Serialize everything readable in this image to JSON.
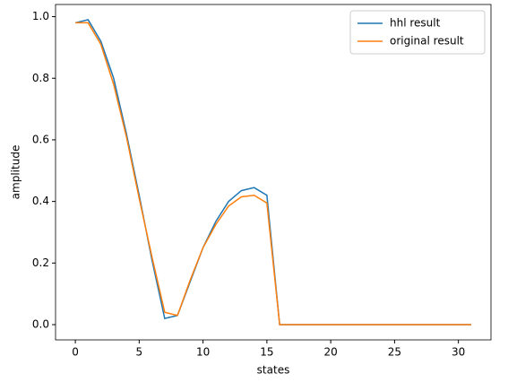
{
  "chart_data": {
    "type": "line",
    "x_label": "states",
    "y_label": "amplitude",
    "x": [
      0,
      1,
      2,
      3,
      4,
      5,
      6,
      7,
      8,
      9,
      10,
      11,
      12,
      13,
      14,
      15,
      16,
      17,
      18,
      19,
      20,
      21,
      22,
      23,
      24,
      25,
      26,
      27,
      28,
      29,
      30,
      31
    ],
    "series": [
      {
        "name": "hhl result",
        "color": "#1f77b4",
        "values": [
          0.98,
          0.99,
          0.92,
          0.8,
          0.62,
          0.42,
          0.21,
          0.02,
          0.03,
          0.14,
          0.25,
          0.335,
          0.4,
          0.435,
          0.445,
          0.42,
          0,
          0,
          0,
          0,
          0,
          0,
          0,
          0,
          0,
          0,
          0,
          0,
          0,
          0,
          0,
          0
        ]
      },
      {
        "name": "original result",
        "color": "#ff7f0e",
        "values": [
          0.98,
          0.98,
          0.91,
          0.78,
          0.61,
          0.41,
          0.22,
          0.04,
          0.03,
          0.145,
          0.25,
          0.325,
          0.385,
          0.415,
          0.42,
          0.395,
          0,
          0,
          0,
          0,
          0,
          0,
          0,
          0,
          0,
          0,
          0,
          0,
          0,
          0,
          0,
          0
        ]
      }
    ],
    "xlim": [
      -1.55,
      32.55
    ],
    "xticks": [
      0,
      5,
      10,
      15,
      20,
      25,
      30
    ],
    "ylim": [
      -0.0495,
      1.0395
    ],
    "yticks": [
      {
        "value": 0,
        "label": "0.0"
      },
      {
        "value": 0.2,
        "label": "0.2"
      },
      {
        "value": 0.4,
        "label": "0.4"
      },
      {
        "value": 0.6,
        "label": "0.6"
      },
      {
        "value": 0.8,
        "label": "0.8"
      },
      {
        "value": 1,
        "label": "1.0"
      }
    ],
    "legend": "upper right"
  }
}
